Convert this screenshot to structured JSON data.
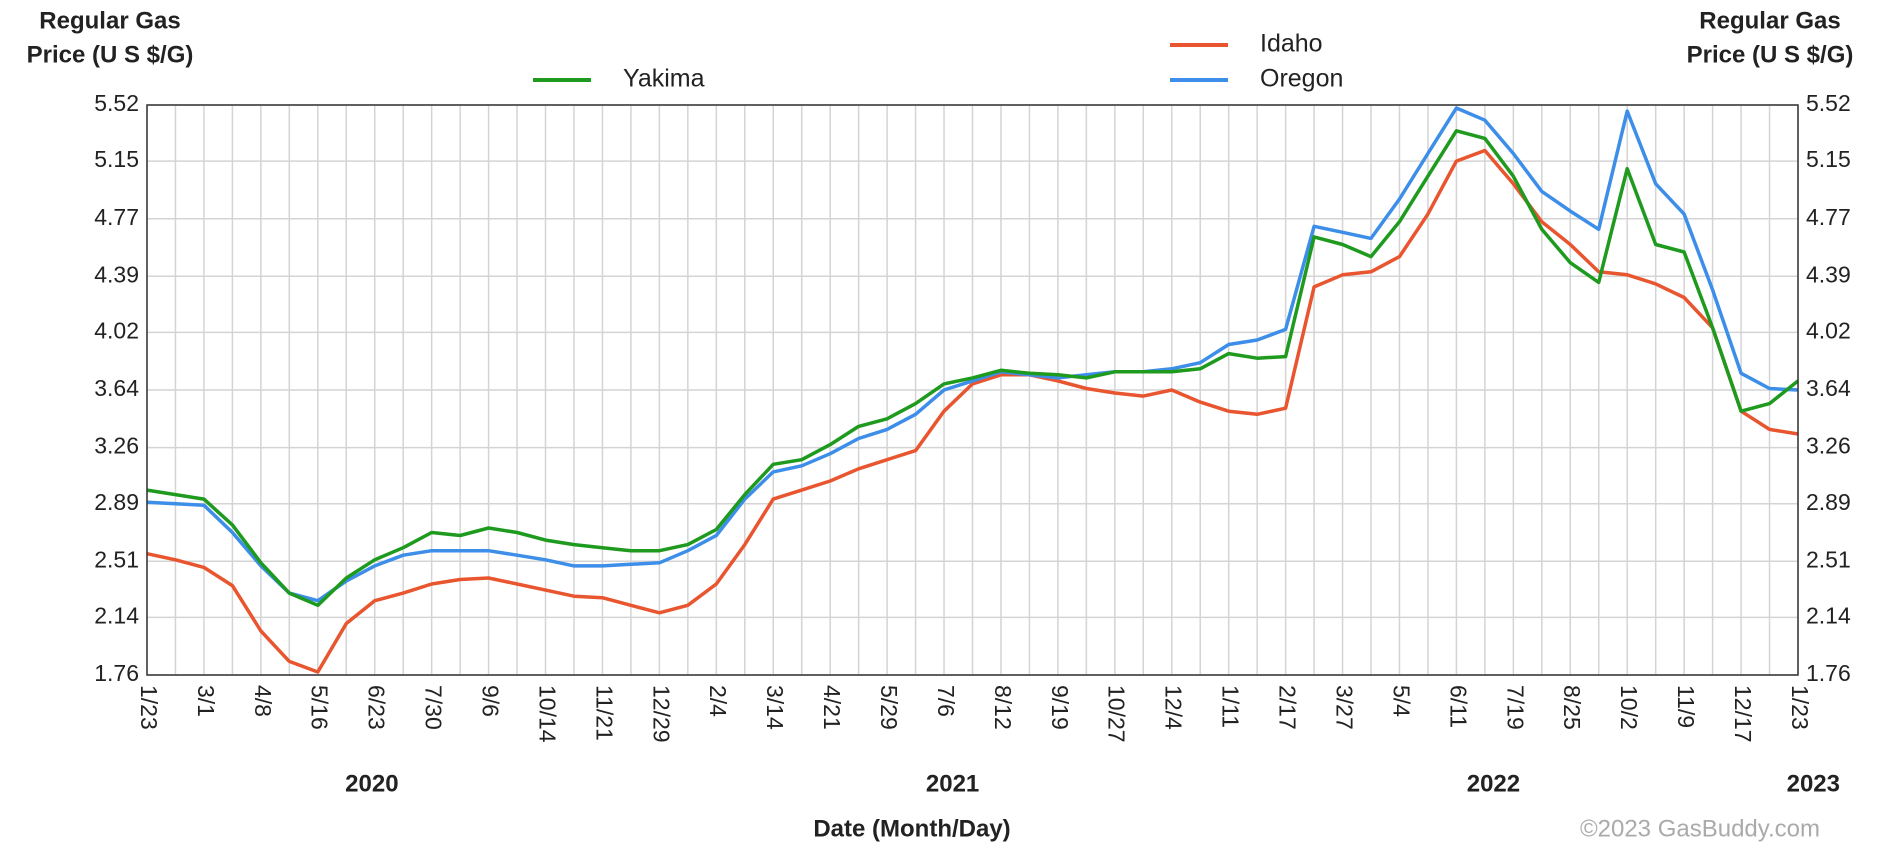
{
  "chart_data": {
    "type": "line",
    "ylabel": [
      "Regular Gas",
      "Price (U S $/G)"
    ],
    "y2label": [
      "Regular Gas",
      "Price (U S $/G)"
    ],
    "xlabel": "Date (Month/Day)",
    "credit": "©2023 GasBuddy.com",
    "year_labels": [
      "2020",
      "2021",
      "2022",
      "2023"
    ],
    "categories": [
      "1/23",
      null,
      "3/1",
      null,
      "4/8",
      null,
      "5/16",
      null,
      "6/23",
      null,
      "7/30",
      null,
      "9/6",
      null,
      "10/14",
      null,
      "11/21",
      null,
      "12/29",
      null,
      "2/4",
      null,
      "3/14",
      null,
      "4/21",
      null,
      "5/29",
      null,
      "7/6",
      null,
      "8/12",
      null,
      "9/19",
      null,
      "10/27",
      null,
      "12/4",
      null,
      "1/11",
      null,
      "2/17",
      null,
      "3/27",
      null,
      "5/4",
      null,
      "6/11",
      null,
      "7/19",
      null,
      "8/25",
      null,
      "10/2",
      null,
      "11/9",
      null,
      "12/17",
      null,
      "1/23"
    ],
    "series": [
      {
        "name": "Idaho",
        "color": "#e8552f",
        "values": [
          2.56,
          2.52,
          2.47,
          2.35,
          2.05,
          1.85,
          1.78,
          2.1,
          2.25,
          2.3,
          2.36,
          2.39,
          2.4,
          2.36,
          2.32,
          2.28,
          2.27,
          2.22,
          2.17,
          2.22,
          2.36,
          2.62,
          2.92,
          2.98,
          3.04,
          3.12,
          3.18,
          3.24,
          3.5,
          3.68,
          3.74,
          3.74,
          3.7,
          3.65,
          3.62,
          3.6,
          3.64,
          3.56,
          3.5,
          3.48,
          3.52,
          4.32,
          4.4,
          4.42,
          4.52,
          4.8,
          5.15,
          5.22,
          5.0,
          4.75,
          4.6,
          4.42,
          4.4,
          4.34,
          4.25,
          4.05,
          3.5,
          3.38,
          3.35
        ]
      },
      {
        "name": "Oregon",
        "color": "#3c8ee8",
        "values": [
          2.9,
          2.89,
          2.88,
          2.7,
          2.48,
          2.3,
          2.25,
          2.38,
          2.48,
          2.55,
          2.58,
          2.58,
          2.58,
          2.55,
          2.52,
          2.48,
          2.48,
          2.49,
          2.5,
          2.58,
          2.68,
          2.92,
          3.1,
          3.14,
          3.22,
          3.32,
          3.38,
          3.48,
          3.64,
          3.7,
          3.76,
          3.74,
          3.72,
          3.74,
          3.76,
          3.76,
          3.78,
          3.82,
          3.94,
          3.97,
          4.04,
          4.72,
          4.68,
          4.64,
          4.9,
          5.2,
          5.5,
          5.42,
          5.2,
          4.95,
          4.82,
          4.7,
          5.48,
          5.0,
          4.8,
          4.3,
          3.75,
          3.65,
          3.64
        ]
      },
      {
        "name": "Yakima",
        "color": "#1e9a1e",
        "values": [
          2.98,
          2.95,
          2.92,
          2.75,
          2.5,
          2.3,
          2.22,
          2.4,
          2.52,
          2.6,
          2.7,
          2.68,
          2.73,
          2.7,
          2.65,
          2.62,
          2.6,
          2.58,
          2.58,
          2.62,
          2.72,
          2.95,
          3.15,
          3.18,
          3.28,
          3.4,
          3.45,
          3.55,
          3.68,
          3.72,
          3.77,
          3.75,
          3.74,
          3.72,
          3.76,
          3.76,
          3.76,
          3.78,
          3.88,
          3.85,
          3.86,
          4.65,
          4.6,
          4.52,
          4.75,
          5.05,
          5.35,
          5.3,
          5.05,
          4.7,
          4.48,
          4.35,
          5.1,
          4.6,
          4.55,
          4.05,
          3.5,
          3.55,
          3.7
        ]
      }
    ],
    "ylim": [
      1.76,
      5.52
    ],
    "yticks": [
      1.76,
      2.14,
      2.51,
      2.89,
      3.26,
      3.64,
      4.02,
      4.39,
      4.77,
      5.15,
      5.52
    ],
    "y2lim": [
      1.76,
      5.52
    ],
    "y2ticks": [
      1.76,
      2.14,
      2.51,
      2.89,
      3.26,
      3.64,
      4.02,
      4.39,
      4.77,
      5.15,
      5.52
    ],
    "grid": true
  }
}
